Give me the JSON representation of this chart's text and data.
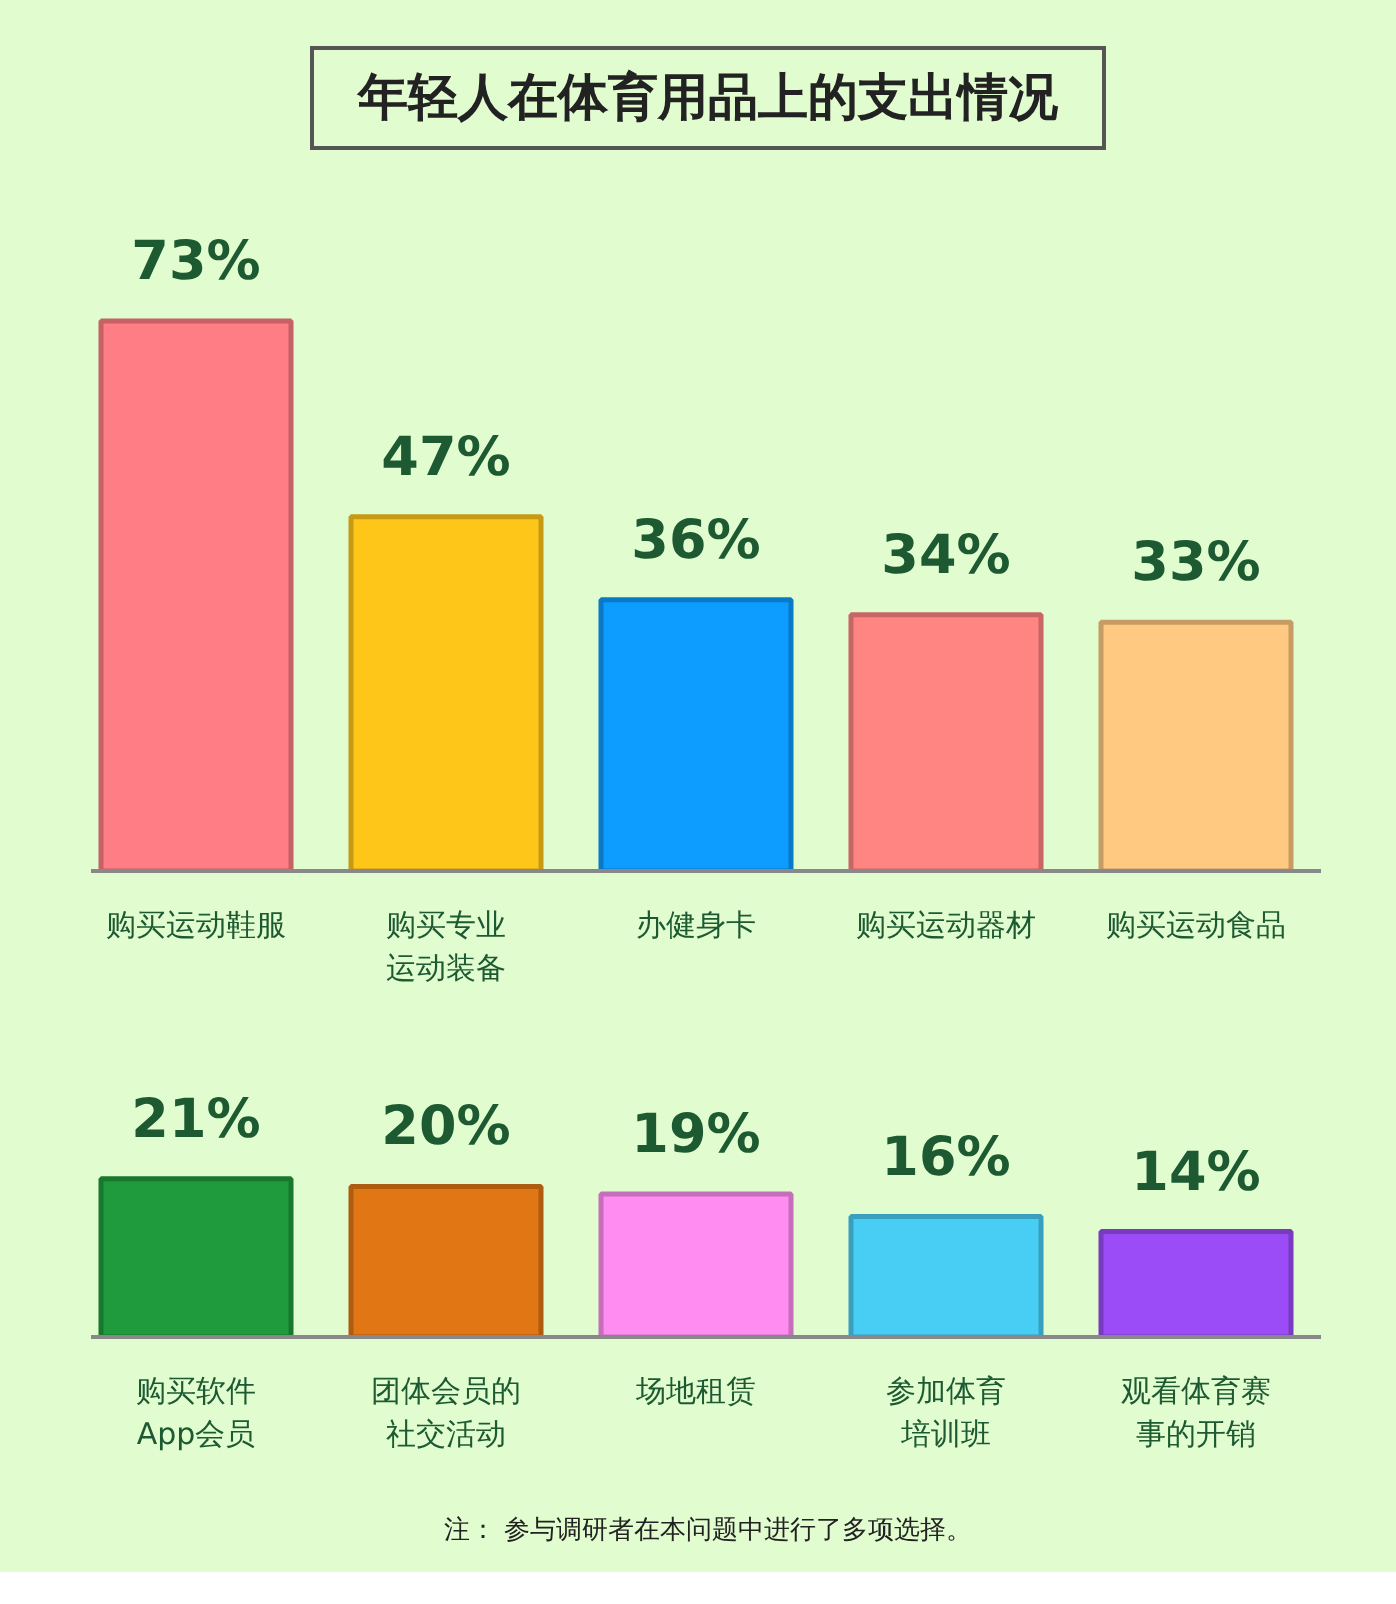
{
  "chart_data": [
    {
      "type": "bar",
      "title": "年轻人在体育用品上的支出情况",
      "categories": [
        "购买运动鞋服",
        "购买专业运动装备",
        "办健身卡",
        "购买运动器材",
        "购买运动食品"
      ],
      "values": [
        73,
        47,
        36,
        34,
        33
      ],
      "value_labels": [
        "73%",
        "47%",
        "36%",
        "34%",
        "33%"
      ],
      "colors": [
        "#ff7d84",
        "#ffc61a",
        "#0d9cff",
        "#ff8582",
        "#ffc981"
      ],
      "tick_labels": "x"
    },
    {
      "type": "bar",
      "categories": [
        "购买软件App会员",
        "团体会员的社交活动",
        "场地租赁",
        "参加体育培训班",
        "观看体育赛事的开销"
      ],
      "values": [
        21,
        20,
        19,
        16,
        14
      ],
      "value_labels": [
        "21%",
        "20%",
        "19%",
        "16%",
        "14%"
      ],
      "colors": [
        "#1f9a3c",
        "#e07614",
        "#ff8cf0",
        "#48cdf4",
        "#9b4cf6"
      ],
      "tick_labels": "x",
      "annotations": [
        "注：  参与调研者在本问题中进行了多项选择。"
      ]
    }
  ]
}
